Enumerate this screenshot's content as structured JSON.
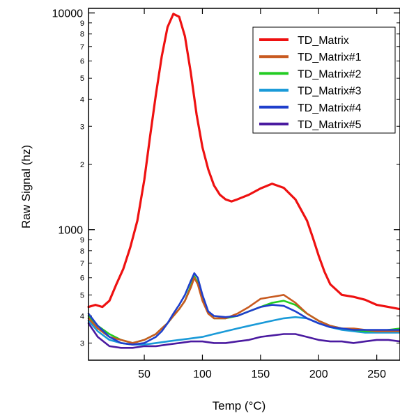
{
  "chart_data": {
    "type": "line",
    "xlabel": "Temp (°C)",
    "ylabel": "Raw Signal (hz)",
    "xlim": [
      2,
      270
    ],
    "ylim": [
      250,
      10500
    ],
    "y_scale": "log",
    "x_ticks": [
      50,
      100,
      150,
      200,
      250
    ],
    "y_major_ticks": [
      {
        "value": 1000,
        "label": "1000"
      },
      {
        "value": 10000,
        "label": "10000"
      }
    ],
    "y_minor_ticks": [
      {
        "value": 300,
        "label": "3"
      },
      {
        "value": 400,
        "label": "4"
      },
      {
        "value": 500,
        "label": "5"
      },
      {
        "value": 600,
        "label": "6"
      },
      {
        "value": 700,
        "label": "7"
      },
      {
        "value": 800,
        "label": "8"
      },
      {
        "value": 900,
        "label": "9"
      },
      {
        "value": 2000,
        "label": "2"
      },
      {
        "value": 3000,
        "label": "3"
      },
      {
        "value": 4000,
        "label": "4"
      },
      {
        "value": 5000,
        "label": "5"
      },
      {
        "value": 6000,
        "label": "6"
      },
      {
        "value": 7000,
        "label": "7"
      },
      {
        "value": 8000,
        "label": "8"
      },
      {
        "value": 9000,
        "label": "9"
      }
    ],
    "legend_position": "top-right",
    "grid": false,
    "series": [
      {
        "name": "TD_Matrix",
        "color": "#ee1111",
        "x": [
          2,
          8,
          14,
          20,
          26,
          32,
          38,
          44,
          50,
          55,
          60,
          65,
          70,
          75,
          80,
          85,
          90,
          95,
          100,
          105,
          110,
          115,
          120,
          125,
          130,
          140,
          150,
          160,
          170,
          180,
          190,
          195,
          200,
          205,
          210,
          220,
          230,
          240,
          250,
          260,
          270
        ],
        "y": [
          440,
          450,
          440,
          470,
          560,
          660,
          830,
          1100,
          1700,
          2700,
          4200,
          6300,
          8600,
          9900,
          9600,
          7800,
          5300,
          3400,
          2400,
          1900,
          1600,
          1450,
          1380,
          1350,
          1380,
          1450,
          1550,
          1630,
          1560,
          1380,
          1100,
          920,
          760,
          640,
          560,
          500,
          490,
          475,
          450,
          440,
          430
        ]
      },
      {
        "name": "TD_Matrix#1",
        "color": "#c85a20",
        "x": [
          2,
          10,
          20,
          30,
          40,
          50,
          60,
          65,
          70,
          75,
          80,
          85,
          90,
          93,
          96,
          100,
          105,
          110,
          120,
          130,
          140,
          150,
          160,
          170,
          180,
          190,
          200,
          210,
          220,
          230,
          240,
          250,
          260,
          270
        ],
        "y": [
          390,
          350,
          320,
          310,
          300,
          310,
          330,
          350,
          370,
          400,
          430,
          470,
          540,
          600,
          560,
          470,
          410,
          390,
          390,
          410,
          440,
          480,
          490,
          500,
          460,
          410,
          380,
          360,
          350,
          350,
          345,
          340,
          340,
          340
        ]
      },
      {
        "name": "TD_Matrix#2",
        "color": "#22cc22",
        "x": [
          2,
          10,
          20,
          30,
          40,
          50,
          60,
          65,
          70,
          75,
          80,
          85,
          90,
          93,
          96,
          100,
          105,
          110,
          120,
          130,
          140,
          150,
          160,
          170,
          180,
          190,
          200,
          210,
          220,
          230,
          240,
          250,
          260,
          270
        ],
        "y": [
          400,
          360,
          330,
          310,
          300,
          310,
          330,
          350,
          370,
          400,
          430,
          470,
          550,
          610,
          570,
          480,
          415,
          390,
          390,
          400,
          420,
          440,
          460,
          470,
          450,
          410,
          380,
          360,
          350,
          345,
          340,
          340,
          345,
          350
        ]
      },
      {
        "name": "TD_Matrix#3",
        "color": "#1a9ad8",
        "x": [
          2,
          10,
          20,
          30,
          40,
          50,
          60,
          70,
          80,
          90,
          100,
          110,
          120,
          130,
          140,
          150,
          160,
          170,
          180,
          190,
          200,
          210,
          220,
          230,
          240,
          250,
          260,
          270
        ],
        "y": [
          380,
          340,
          310,
          300,
          295,
          295,
          300,
          305,
          310,
          315,
          320,
          330,
          340,
          350,
          360,
          370,
          380,
          390,
          395,
          390,
          370,
          355,
          345,
          340,
          335,
          335,
          335,
          335
        ]
      },
      {
        "name": "TD_Matrix#4",
        "color": "#1f3fcc",
        "x": [
          2,
          10,
          20,
          30,
          40,
          50,
          60,
          65,
          70,
          75,
          80,
          85,
          90,
          93,
          96,
          100,
          105,
          110,
          120,
          130,
          140,
          150,
          160,
          170,
          180,
          190,
          200,
          210,
          220,
          230,
          240,
          250,
          260,
          270
        ],
        "y": [
          410,
          360,
          320,
          300,
          295,
          300,
          320,
          340,
          370,
          410,
          450,
          500,
          580,
          630,
          600,
          500,
          420,
          400,
          395,
          400,
          420,
          440,
          450,
          445,
          420,
          390,
          370,
          355,
          350,
          345,
          345,
          345,
          345,
          345
        ]
      },
      {
        "name": "TD_Matrix#5",
        "color": "#4a1aa0",
        "x": [
          2,
          10,
          20,
          30,
          40,
          50,
          60,
          70,
          80,
          90,
          100,
          110,
          120,
          130,
          140,
          150,
          160,
          170,
          180,
          190,
          200,
          210,
          220,
          230,
          240,
          250,
          260,
          270
        ],
        "y": [
          370,
          320,
          290,
          285,
          285,
          290,
          290,
          295,
          300,
          305,
          305,
          300,
          300,
          305,
          310,
          320,
          325,
          330,
          330,
          320,
          310,
          305,
          305,
          300,
          305,
          310,
          310,
          305
        ]
      }
    ]
  }
}
